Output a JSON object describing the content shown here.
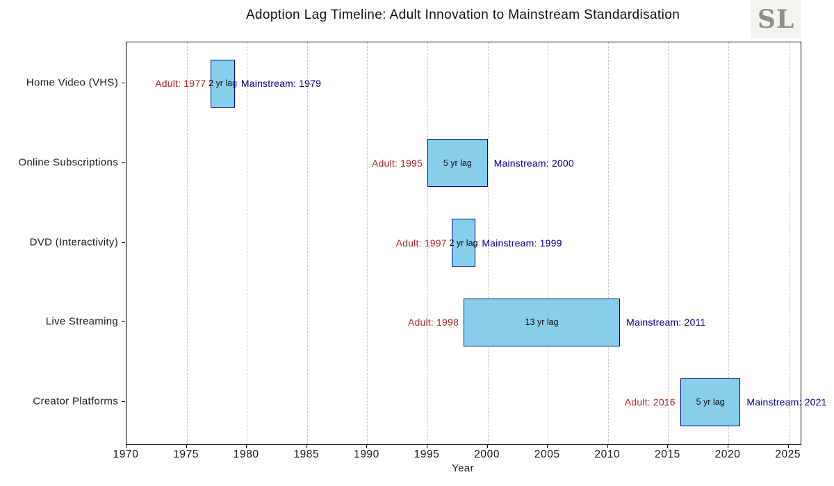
{
  "title": "Adoption Lag Timeline: Adult Innovation to Mainstream Standardisation",
  "logo": {
    "text": "SL"
  },
  "chart_data": {
    "type": "bar",
    "subtype": "horizontal-range-gantt",
    "title": "Adoption Lag Timeline: Adult Innovation to Mainstream Standardisation",
    "xlabel": "Year",
    "ylabel": "",
    "xlim": [
      1970,
      2026
    ],
    "xticks": [
      1970,
      1975,
      1980,
      1985,
      1990,
      1995,
      2000,
      2005,
      2010,
      2015,
      2020,
      2025
    ],
    "grid": {
      "vertical": true,
      "style": "dashed",
      "color": "#C9C9C9"
    },
    "legend": "none",
    "categories": [
      "Home Video (VHS)",
      "Online Subscriptions",
      "DVD (Interactivity)",
      "Live Streaming",
      "Creator Platforms"
    ],
    "series": [
      {
        "category": "Home Video (VHS)",
        "adult_year": 1977,
        "mainstream_year": 1979,
        "lag_years": 2,
        "adult_label": "Adult: 1977",
        "lag_label": "2 yr lag",
        "mainstream_label": "Mainstream: 1979"
      },
      {
        "category": "Online Subscriptions",
        "adult_year": 1995,
        "mainstream_year": 2000,
        "lag_years": 5,
        "adult_label": "Adult: 1995",
        "lag_label": "5 yr lag",
        "mainstream_label": "Mainstream: 2000"
      },
      {
        "category": "DVD (Interactivity)",
        "adult_year": 1997,
        "mainstream_year": 1999,
        "lag_years": 2,
        "adult_label": "Adult: 1997",
        "lag_label": "2 yr lag",
        "mainstream_label": "Mainstream: 1999"
      },
      {
        "category": "Live Streaming",
        "adult_year": 1998,
        "mainstream_year": 2011,
        "lag_years": 13,
        "adult_label": "Adult: 1998",
        "lag_label": "13 yr lag",
        "mainstream_label": "Mainstream: 2011"
      },
      {
        "category": "Creator Platforms",
        "adult_year": 2016,
        "mainstream_year": 2021,
        "lag_years": 5,
        "adult_label": "Adult: 2016",
        "lag_label": "5 yr lag",
        "mainstream_label": "Mainstream: 2021"
      }
    ],
    "colors": {
      "bar_fill": "#87CEEB",
      "bar_border": "#00008B",
      "adult_text": "#B22222",
      "mainstream_text": "#00008B",
      "lag_text": "#111111",
      "grid": "#C9C9C9",
      "spine": "#000000",
      "logo_bg": "#F4F4EE",
      "logo_text": "#8F8F8F"
    }
  }
}
